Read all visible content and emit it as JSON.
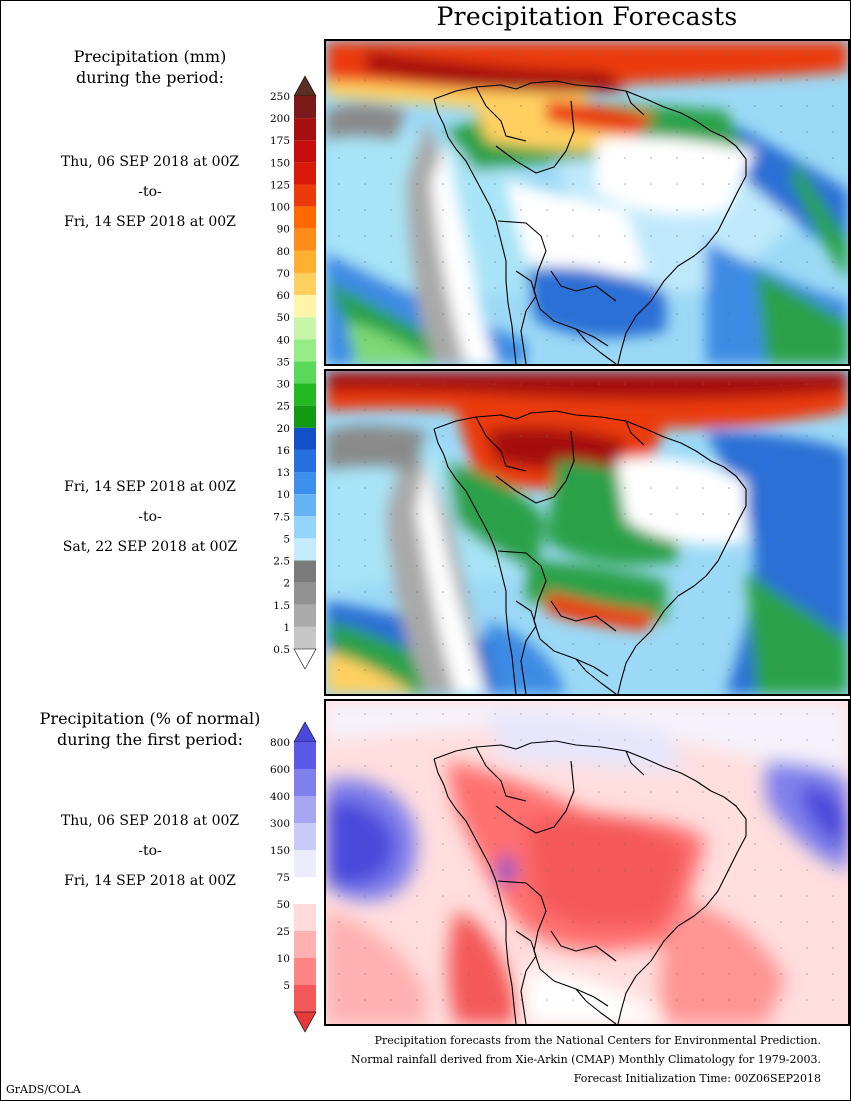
{
  "title": "Precipitation Forecasts",
  "precip_header": [
    "Precipitation (mm)",
    "during the period:"
  ],
  "period1": {
    "start": "Thu, 06 SEP 2018 at 00Z",
    "to": "-to-",
    "end": "Fri, 14 SEP 2018 at 00Z"
  },
  "period2": {
    "start": "Fri, 14 SEP 2018 at 00Z",
    "to": "-to-",
    "end": "Sat, 22 SEP 2018 at 00Z"
  },
  "pct_header": [
    "Precipitation (% of normal)",
    "during the first period:"
  ],
  "period3": {
    "start": "Thu, 06 SEP 2018 at 00Z",
    "to": "-to-",
    "end": "Fri, 14 SEP 2018 at 00Z"
  },
  "precip_colorbar": {
    "labels": [
      "250",
      "200",
      "175",
      "150",
      "125",
      "100",
      "90",
      "80",
      "70",
      "60",
      "50",
      "40",
      "35",
      "30",
      "25",
      "20",
      "16",
      "13",
      "10",
      "7.5",
      "5",
      "2.5",
      "2",
      "1.5",
      "1",
      "0.5"
    ],
    "colors": [
      "#7a1a1a",
      "#a50f0f",
      "#c40d0d",
      "#d91a0a",
      "#eb3b0a",
      "#ff6a00",
      "#ff8c1a",
      "#ffb030",
      "#ffd060",
      "#fff4a8",
      "#c8f5a8",
      "#96ec86",
      "#5ad85a",
      "#22b822",
      "#129a12",
      "#1250c8",
      "#2570dc",
      "#3c90ec",
      "#64b4f4",
      "#96d4fa",
      "#c2ecfc",
      "#7a7a7a",
      "#929292",
      "#aaaaaa",
      "#c6c6c6"
    ],
    "top_cap": "#5a2e22",
    "bottom_cap": "#ffffff"
  },
  "pct_colorbar": {
    "labels": [
      "800",
      "600",
      "400",
      "300",
      "150",
      "75",
      "50",
      "25",
      "10",
      "5"
    ],
    "colors": [
      "#5a5ae6",
      "#8080ec",
      "#a6a6f2",
      "#cacaf8",
      "#ececfd",
      "#ffffff",
      "#ffdada",
      "#ffb0b0",
      "#ff8484",
      "#f45858"
    ],
    "top_cap": "#4848dc",
    "bottom_cap": "#e63a3a"
  },
  "footer": [
    "Precipitation forecasts from the National Centers for Environmental Prediction.",
    "Normal rainfall derived from Xie-Arkin (CMAP) Monthly Climatology for 1979-2003.",
    "Forecast Initialization Time: 00Z06SEP2018"
  ],
  "credit": "GrADS/COLA"
}
